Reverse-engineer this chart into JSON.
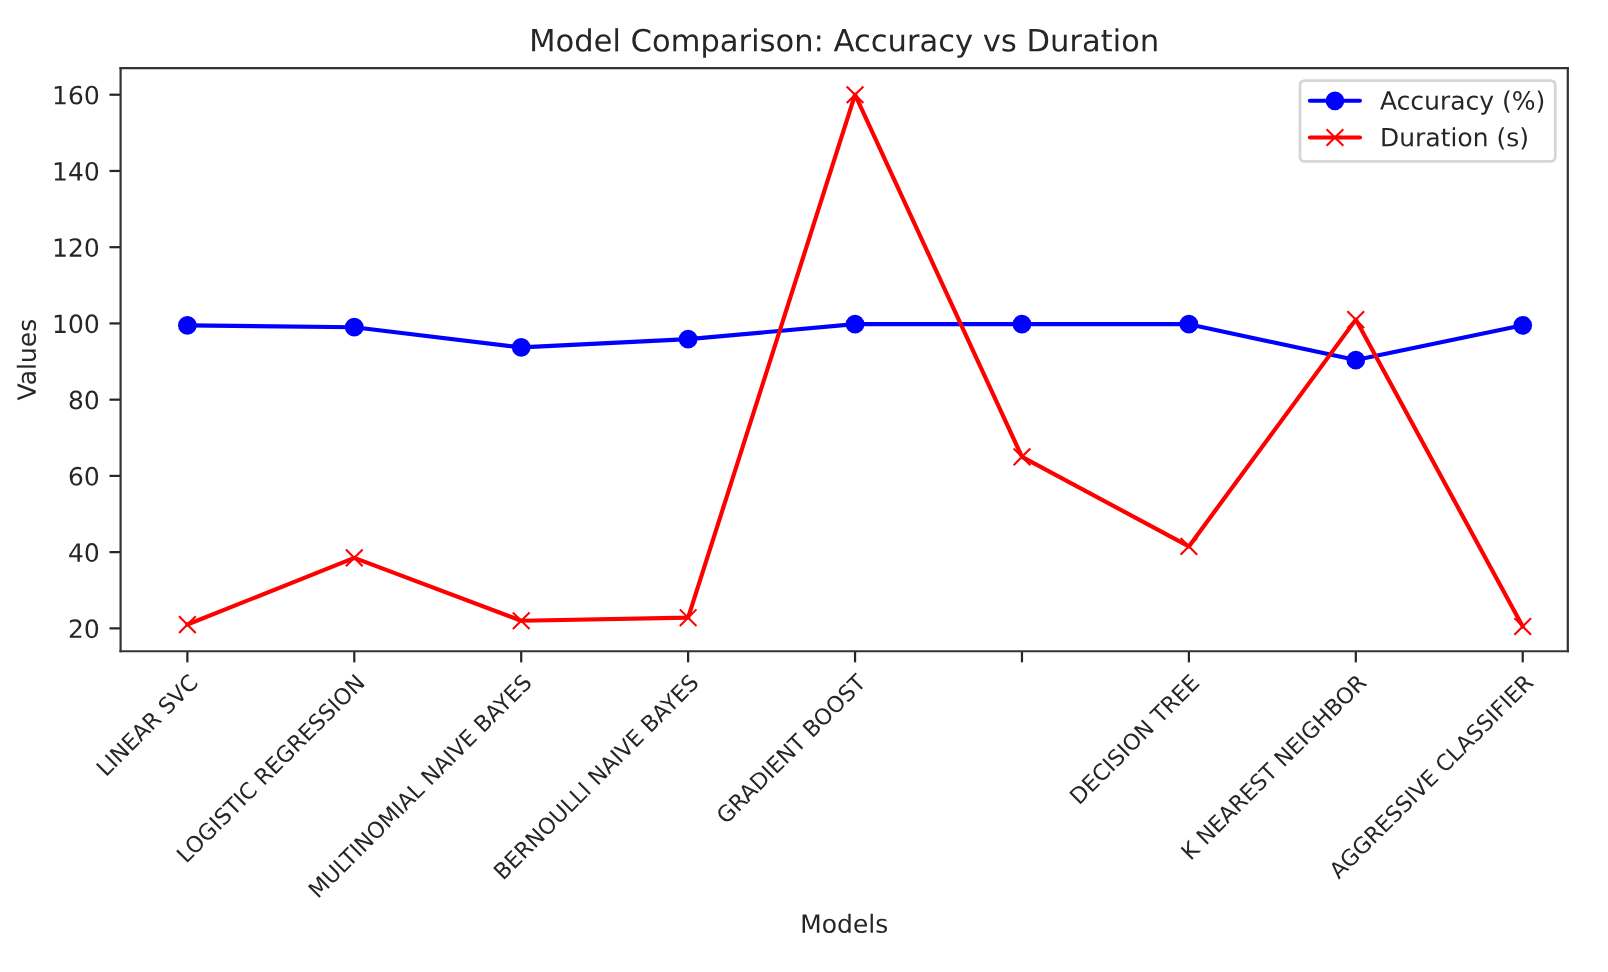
{
  "chart_data": {
    "type": "line",
    "title": "Model Comparison: Accuracy vs Duration",
    "xlabel": "Models",
    "ylabel": "Values",
    "categories": [
      "LINEAR SVC",
      "LOGISTIC REGRESSION",
      "MULTINOMIAL NAIVE BAYES",
      "BERNOULLI NAIVE BAYES",
      "GRADIENT BOOST",
      null,
      "DECISION TREE",
      "K NEAREST NEIGHBOR",
      "AGGRESSIVE CLASSIFIER"
    ],
    "series": [
      {
        "name": "Accuracy (%)",
        "color": "#0000ff",
        "marker": "circle",
        "values": [
          99.5,
          99,
          93.7,
          95.9,
          99.8,
          99.8,
          99.8,
          90.4,
          99.5
        ]
      },
      {
        "name": "Duration (s)",
        "color": "#ff0000",
        "marker": "cross",
        "values": [
          21,
          38.5,
          22,
          22.8,
          160,
          65,
          41.5,
          101,
          20.5
        ]
      }
    ],
    "ylim": [
      14,
      167
    ],
    "yticks": [
      20,
      40,
      60,
      80,
      100,
      120,
      140,
      160
    ],
    "grid": false,
    "legend": "top right",
    "line_style": "solid"
  }
}
